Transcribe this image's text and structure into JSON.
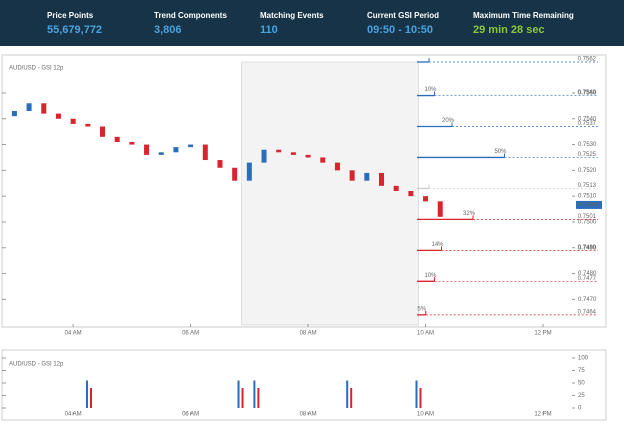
{
  "header": {
    "stats": [
      {
        "label": "Price Points",
        "value": "55,679,772"
      },
      {
        "label": "Trend Components",
        "value": "3,806"
      },
      {
        "label": "Matching Events",
        "value": "110"
      },
      {
        "label": "Current GSI Period",
        "value": "09:50 - 10:50"
      },
      {
        "label": "Maximum Time Remaining",
        "value": "29 min 28 sec"
      }
    ]
  },
  "chart_data": [
    {
      "type": "candlestick",
      "title": "AUD/USD - GSI 12p",
      "x": [
        3.0,
        3.25,
        3.5,
        3.75,
        4.0,
        4.25,
        4.5,
        4.75,
        5.0,
        5.25,
        5.5,
        5.75,
        6.0,
        6.25,
        6.5,
        6.75,
        7.0,
        7.25,
        7.5,
        7.75,
        8.0,
        8.25,
        8.5,
        8.75,
        9.0,
        9.25,
        9.5,
        9.75,
        10.0,
        10.25
      ],
      "open": [
        0.7541,
        0.7543,
        0.7546,
        0.7542,
        0.754,
        0.7538,
        0.7537,
        0.7533,
        0.7531,
        0.753,
        0.7526,
        0.7527,
        0.7529,
        0.753,
        0.7524,
        0.7521,
        0.7516,
        0.7523,
        0.7528,
        0.7527,
        0.7526,
        0.7525,
        0.7523,
        0.752,
        0.7516,
        0.7519,
        0.7514,
        0.7512,
        0.751,
        0.7508
      ],
      "close": [
        0.7543,
        0.7546,
        0.7542,
        0.754,
        0.7538,
        0.7537,
        0.7533,
        0.7531,
        0.753,
        0.7526,
        0.7527,
        0.7529,
        0.753,
        0.7524,
        0.7521,
        0.7516,
        0.7523,
        0.7528,
        0.7527,
        0.7526,
        0.7525,
        0.7523,
        0.752,
        0.7516,
        0.7519,
        0.7514,
        0.7512,
        0.751,
        0.7508,
        0.7502
      ],
      "up_color": "#2a6ebb",
      "down_color": "#d9232d",
      "xlim": [
        2.84,
        12.97
      ],
      "xticks": [
        {
          "value": 4,
          "label": "04 AM"
        },
        {
          "value": 6,
          "label": "06 AM"
        },
        {
          "value": 8,
          "label": "08 AM"
        },
        {
          "value": 10,
          "label": "10 AM"
        },
        {
          "value": 12,
          "label": "12 PM"
        }
      ],
      "ylim": [
        0.7462,
        0.7562
      ],
      "yticks": [
        {
          "value": 0.747,
          "label": "0.7470"
        },
        {
          "value": 0.748,
          "label": "0.7480"
        },
        {
          "value": 0.749,
          "label": "0.7490"
        },
        {
          "value": 0.75,
          "label": "0.7500"
        },
        {
          "value": 0.751,
          "label": "0.7510"
        },
        {
          "value": 0.752,
          "label": "0.7520"
        },
        {
          "value": 0.753,
          "label": "0.7530"
        },
        {
          "value": 0.754,
          "label": "0.7540"
        },
        {
          "value": 0.755,
          "label": "0.7550"
        }
      ],
      "highlight": [
        6.87,
        9.88
      ],
      "current_price": {
        "value": 0.75066,
        "label": "0.75066"
      },
      "levels": [
        {
          "price": 0.7562,
          "price_label": "0.7562",
          "color": "#2a6ebb"
        },
        {
          "price": 0.7549,
          "price_label": "0.7549",
          "percent": 10,
          "percent_label": "10%",
          "color": "#2a6ebb"
        },
        {
          "price": 0.7537,
          "price_label": "0.7537",
          "percent": 20,
          "percent_label": "20%",
          "color": "#2a6ebb"
        },
        {
          "price": 0.7525,
          "price_label": "0.7525",
          "percent": 50,
          "percent_label": "50%",
          "color": "#2a6ebb"
        },
        {
          "price": 0.7513,
          "price_label": "0.7513",
          "color": "#cccccc"
        },
        {
          "price": 0.7501,
          "price_label": "0.7501",
          "percent": 32,
          "percent_label": "32%",
          "color": "#d9232d"
        },
        {
          "price": 0.7489,
          "price_label": "0.7489",
          "percent": 14,
          "percent_label": "14%",
          "color": "#d9232d"
        },
        {
          "price": 0.7477,
          "price_label": "0.7477",
          "percent": 10,
          "percent_label": "10%",
          "color": "#d9232d"
        },
        {
          "price": 0.7464,
          "price_label": "0.7464",
          "percent": 5,
          "percent_label": "5%",
          "color": "#d9232d"
        }
      ]
    },
    {
      "type": "bar",
      "title": "AUD/USD - GSI 12p",
      "x": [
        4.27,
        6.85,
        7.12,
        8.7,
        9.88
      ],
      "series": [
        {
          "color": "#2a6ebb",
          "values": [
            55,
            55,
            55,
            55,
            55
          ]
        },
        {
          "color": "#d9232d",
          "values": [
            40,
            40,
            40,
            40,
            40
          ]
        }
      ],
      "xlim": [
        2.84,
        12.97
      ],
      "xticks": [
        {
          "value": 4,
          "label": "04 AM"
        },
        {
          "value": 6,
          "label": "06 AM"
        },
        {
          "value": 8,
          "label": "08 AM"
        },
        {
          "value": 10,
          "label": "10 AM"
        },
        {
          "value": 12,
          "label": "12 PM"
        }
      ],
      "ylim": [
        0,
        100
      ],
      "yticks": [
        0,
        25,
        50,
        75,
        100
      ]
    }
  ]
}
